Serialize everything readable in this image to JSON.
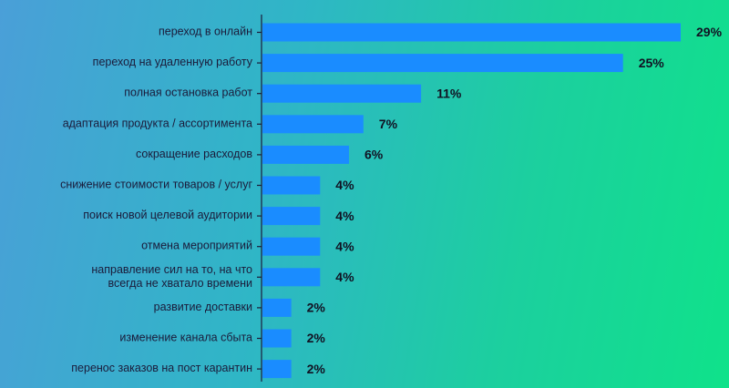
{
  "chart_data": {
    "type": "bar",
    "orientation": "horizontal",
    "categories": [
      [
        "переход в онлайн"
      ],
      [
        "переход на удаленную работу"
      ],
      [
        "полная остановка работ"
      ],
      [
        "адаптация продукта / ассортимента"
      ],
      [
        "сокращение расходов"
      ],
      [
        "снижение стоимости товаров / услуг"
      ],
      [
        "поиск новой целевой аудитории"
      ],
      [
        "отмена мероприятий"
      ],
      [
        "направление сил на то, на что",
        "всегда не хватало времени"
      ],
      [
        "развитие доставки"
      ],
      [
        "изменение канала сбыта"
      ],
      [
        "перенос заказов на пост карантин"
      ]
    ],
    "values": [
      29,
      25,
      11,
      7,
      6,
      4,
      4,
      4,
      4,
      2,
      2,
      2
    ],
    "value_labels": [
      "29%",
      "25%",
      "11%",
      "7%",
      "6%",
      "4%",
      "4%",
      "4%",
      "4%",
      "2%",
      "2%",
      "2%"
    ],
    "unit": "%",
    "xlim": [
      0,
      29
    ],
    "bar_color": "#1a8cff",
    "axis_color": "#1b1b3a",
    "label_color": "#1b1b3a",
    "grid": false,
    "legend": false
  }
}
